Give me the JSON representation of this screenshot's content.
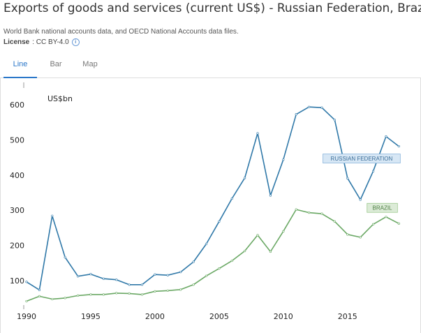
{
  "header": {
    "title": "Exports of goods and services (current US$) - Russian Federation, Brazil",
    "source": "World Bank national accounts data, and OECD National Accounts data files.",
    "license_label": "License",
    "license_value": ": CC BY-4.0"
  },
  "tabs": [
    {
      "label": "Line",
      "active": true
    },
    {
      "label": "Bar",
      "active": false
    },
    {
      "label": "Map",
      "active": false
    }
  ],
  "chart_data": {
    "type": "line",
    "unit_label": "US$bn",
    "x": [
      1990,
      1991,
      1992,
      1993,
      1994,
      1995,
      1996,
      1997,
      1998,
      1999,
      2000,
      2001,
      2002,
      2003,
      2004,
      2005,
      2006,
      2007,
      2008,
      2009,
      2010,
      2011,
      2012,
      2013,
      2014,
      2015,
      2016,
      2017,
      2018,
      2019
    ],
    "xticks": [
      1990,
      1995,
      2000,
      2005,
      2010,
      2015
    ],
    "yticks": [
      100,
      200,
      300,
      400,
      500,
      600
    ],
    "ylim": [
      20,
      660
    ],
    "xlim": [
      1990,
      2019.2
    ],
    "series": [
      {
        "name": "RUSSIAN FEDERATION",
        "color": "#2f78a8",
        "label_bg": "#d7e7f5",
        "label_border": "#8bb6dc",
        "label_color": "#3b6e99",
        "values": [
          96,
          73,
          284,
          166,
          112,
          118,
          105,
          102,
          88,
          88,
          117,
          115,
          124,
          153,
          204,
          268,
          333,
          392,
          519,
          342,
          444,
          573,
          594,
          592,
          557,
          391,
          330,
          411,
          510,
          482
        ]
      },
      {
        "name": "BRAZIL",
        "color": "#6aa864",
        "label_bg": "#dcebd7",
        "label_border": "#9cc98f",
        "label_color": "#4e7f44",
        "values": [
          41,
          55,
          47,
          50,
          57,
          60,
          60,
          64,
          63,
          60,
          69,
          71,
          74,
          88,
          113,
          134,
          156,
          184,
          229,
          182,
          240,
          302,
          293,
          290,
          268,
          231,
          223,
          260,
          281,
          262
        ]
      }
    ]
  }
}
